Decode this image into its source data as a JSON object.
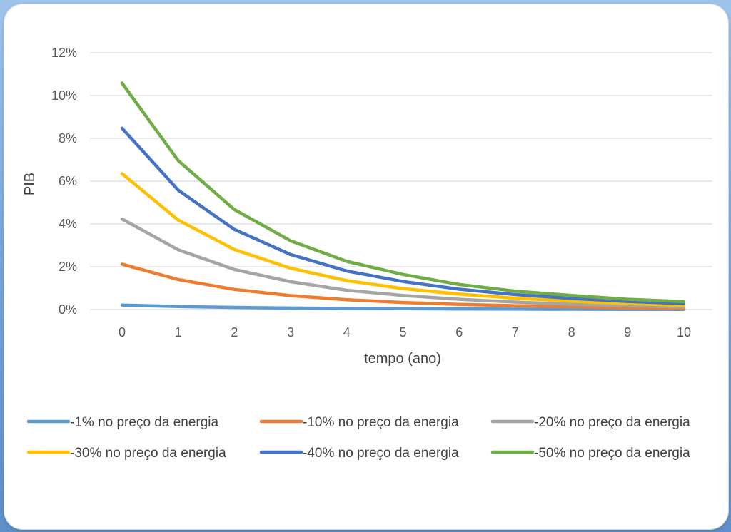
{
  "chart_data": {
    "type": "line",
    "x": [
      0,
      1,
      2,
      3,
      4,
      5,
      6,
      7,
      8,
      9,
      10
    ],
    "xlabel": "tempo (ano)",
    "ylabel": "PIB",
    "ylim": [
      0,
      12
    ],
    "yticks": [
      0,
      2,
      4,
      6,
      8,
      10,
      12
    ],
    "ytick_labels": [
      "0%",
      "2%",
      "4%",
      "6%",
      "8%",
      "10%",
      "12%"
    ],
    "xtick_labels": [
      "0",
      "1",
      "2",
      "3",
      "4",
      "5",
      "6",
      "7",
      "8",
      "9",
      "10"
    ],
    "grid": true,
    "legend_position": "bottom",
    "series": [
      {
        "name": "-1% no preço da energia",
        "color": "#5B9BD5",
        "values": [
          0.21,
          0.14,
          0.1,
          0.07,
          0.05,
          0.04,
          0.03,
          0.02,
          0.015,
          0.01,
          0.01
        ]
      },
      {
        "name": "-10% no preço da energia",
        "color": "#ED7D31",
        "values": [
          2.12,
          1.4,
          0.94,
          0.65,
          0.46,
          0.33,
          0.24,
          0.18,
          0.13,
          0.08,
          0.05
        ]
      },
      {
        "name": "-20% no preço da energia",
        "color": "#A5A5A5",
        "values": [
          4.23,
          2.79,
          1.87,
          1.3,
          0.9,
          0.66,
          0.48,
          0.35,
          0.25,
          0.18,
          0.12
        ]
      },
      {
        "name": "-30% no preço da energia",
        "color": "#FFC000",
        "values": [
          6.35,
          4.18,
          2.8,
          1.93,
          1.35,
          0.98,
          0.72,
          0.53,
          0.39,
          0.28,
          0.2
        ]
      },
      {
        "name": "-40% no preço da energia",
        "color": "#4472C4",
        "values": [
          8.47,
          5.58,
          3.74,
          2.57,
          1.8,
          1.31,
          0.95,
          0.7,
          0.52,
          0.38,
          0.28
        ]
      },
      {
        "name": "-50% no preço da energia",
        "color": "#70AD47",
        "values": [
          10.58,
          6.96,
          4.67,
          3.21,
          2.25,
          1.64,
          1.17,
          0.86,
          0.66,
          0.48,
          0.37
        ]
      }
    ]
  }
}
